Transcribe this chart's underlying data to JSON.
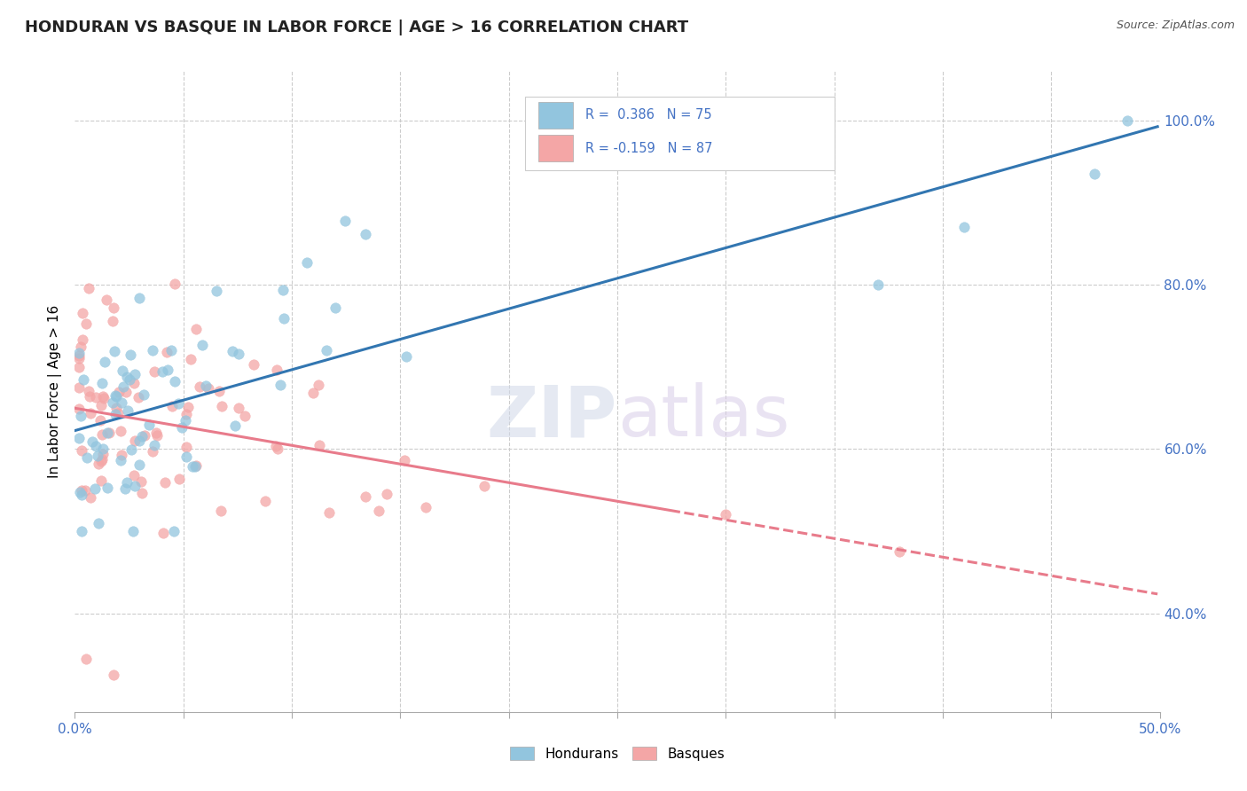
{
  "title": "HONDURAN VS BASQUE IN LABOR FORCE | AGE > 16 CORRELATION CHART",
  "source": "Source: ZipAtlas.com",
  "ylabel": "In Labor Force | Age > 16",
  "xlim": [
    0.0,
    0.5
  ],
  "ylim": [
    0.28,
    1.06
  ],
  "yticks": [
    0.4,
    0.6,
    0.8,
    1.0
  ],
  "blue_color": "#92c5de",
  "pink_color": "#f4a6a6",
  "blue_line_color": "#3276b1",
  "pink_line_color": "#e87b8b",
  "r_blue": 0.386,
  "n_blue": 75,
  "r_pink": -0.159,
  "n_pink": 87,
  "legend_label_blue": "Hondurans",
  "legend_label_pink": "Basques",
  "watermark_zip": "ZIP",
  "watermark_atlas": "atlas",
  "title_fontsize": 13,
  "label_fontsize": 11,
  "tick_fontsize": 11,
  "legend_text_color": "#4472C4",
  "tick_color": "#4472C4"
}
